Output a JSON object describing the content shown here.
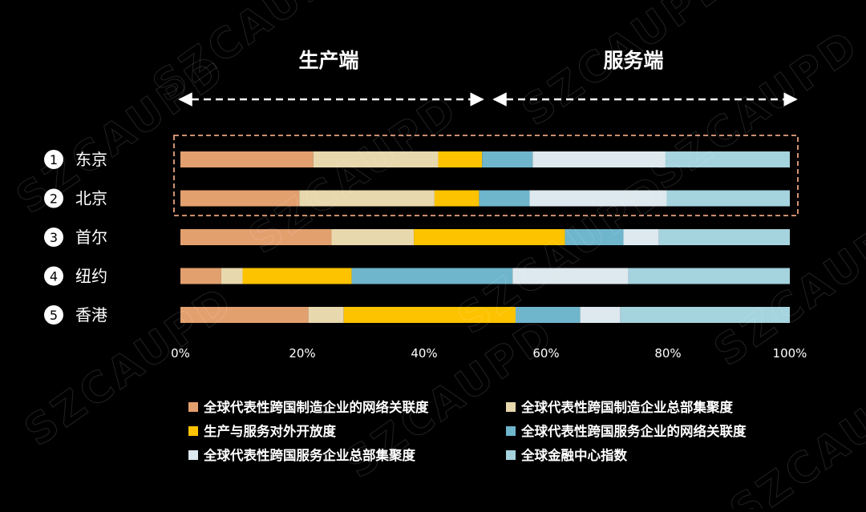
{
  "header": {
    "production_label": "生产端",
    "service_label": "服务端"
  },
  "watermark": "SZCAUPD",
  "colors": {
    "background": "#000000",
    "text": "#ffffff",
    "highlight_box": "#e8a27e",
    "series": [
      "#e3a06f",
      "#e8d8ae",
      "#fec300",
      "#6fb5cc",
      "#dde9ee",
      "#a5d3de"
    ]
  },
  "chart_data": {
    "type": "bar",
    "orientation": "horizontal",
    "stacked": true,
    "normalized": true,
    "categories": [
      "东京",
      "北京",
      "首尔",
      "纽约",
      "香港"
    ],
    "category_numbers": [
      "1",
      "2",
      "3",
      "4",
      "5"
    ],
    "highlighted_categories": [
      "东京",
      "北京"
    ],
    "series": [
      {
        "name": "全球代表性跨国制造企业的网络关联度",
        "color": "#e3a06f",
        "values": [
          21.8,
          19.5,
          24.8,
          6.7,
          21.0
        ]
      },
      {
        "name": "全球代表性跨国制造企业总部集聚度",
        "color": "#e8d8ae",
        "values": [
          20.5,
          22.2,
          13.5,
          3.5,
          5.8
        ]
      },
      {
        "name": "生产与服务对外开放度",
        "color": "#fec300",
        "values": [
          7.2,
          7.3,
          24.8,
          17.9,
          28.2
        ]
      },
      {
        "name": "全球代表性跨国服务企业的网络关联度",
        "color": "#6fb5cc",
        "values": [
          8.3,
          8.3,
          9.6,
          26.4,
          10.6
        ]
      },
      {
        "name": "全球代表性跨国服务企业总部集聚度",
        "color": "#dde9ee",
        "values": [
          21.8,
          22.5,
          5.8,
          19.0,
          6.6
        ]
      },
      {
        "name": "全球金融中心指数",
        "color": "#a5d3de",
        "values": [
          20.4,
          20.2,
          21.5,
          26.5,
          27.8
        ]
      }
    ],
    "xlim": [
      0,
      100
    ],
    "x_ticks": [
      "0%",
      "20%",
      "40%",
      "60%",
      "80%",
      "100%"
    ],
    "grid": false,
    "legend_position": "bottom"
  }
}
